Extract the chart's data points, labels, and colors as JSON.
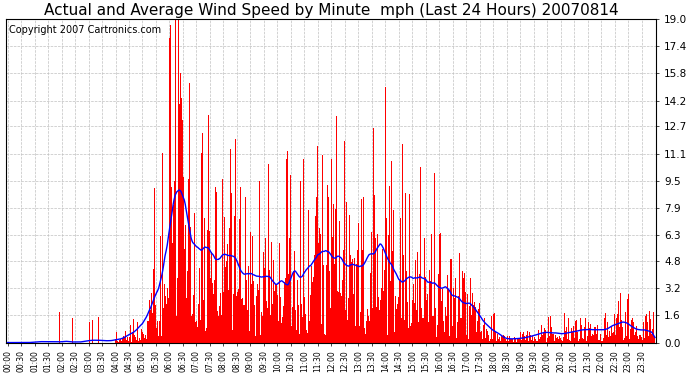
{
  "title": "Actual and Average Wind Speed by Minute  mph (Last 24 Hours) 20070814",
  "copyright_text": "Copyright 2007 Cartronics.com",
  "background_color": "#ffffff",
  "plot_bg_color": "#ffffff",
  "bar_color": "#ff0000",
  "line_color": "#0000ff",
  "yticks": [
    0.0,
    1.6,
    3.2,
    4.8,
    6.3,
    7.9,
    9.5,
    11.1,
    12.7,
    14.2,
    15.8,
    17.4,
    19.0
  ],
  "ymax": 19.0,
  "ymin": 0.0,
  "grid_color": "#c0c0c0",
  "grid_linestyle": "--",
  "title_fontsize": 11,
  "copyright_fontsize": 7
}
